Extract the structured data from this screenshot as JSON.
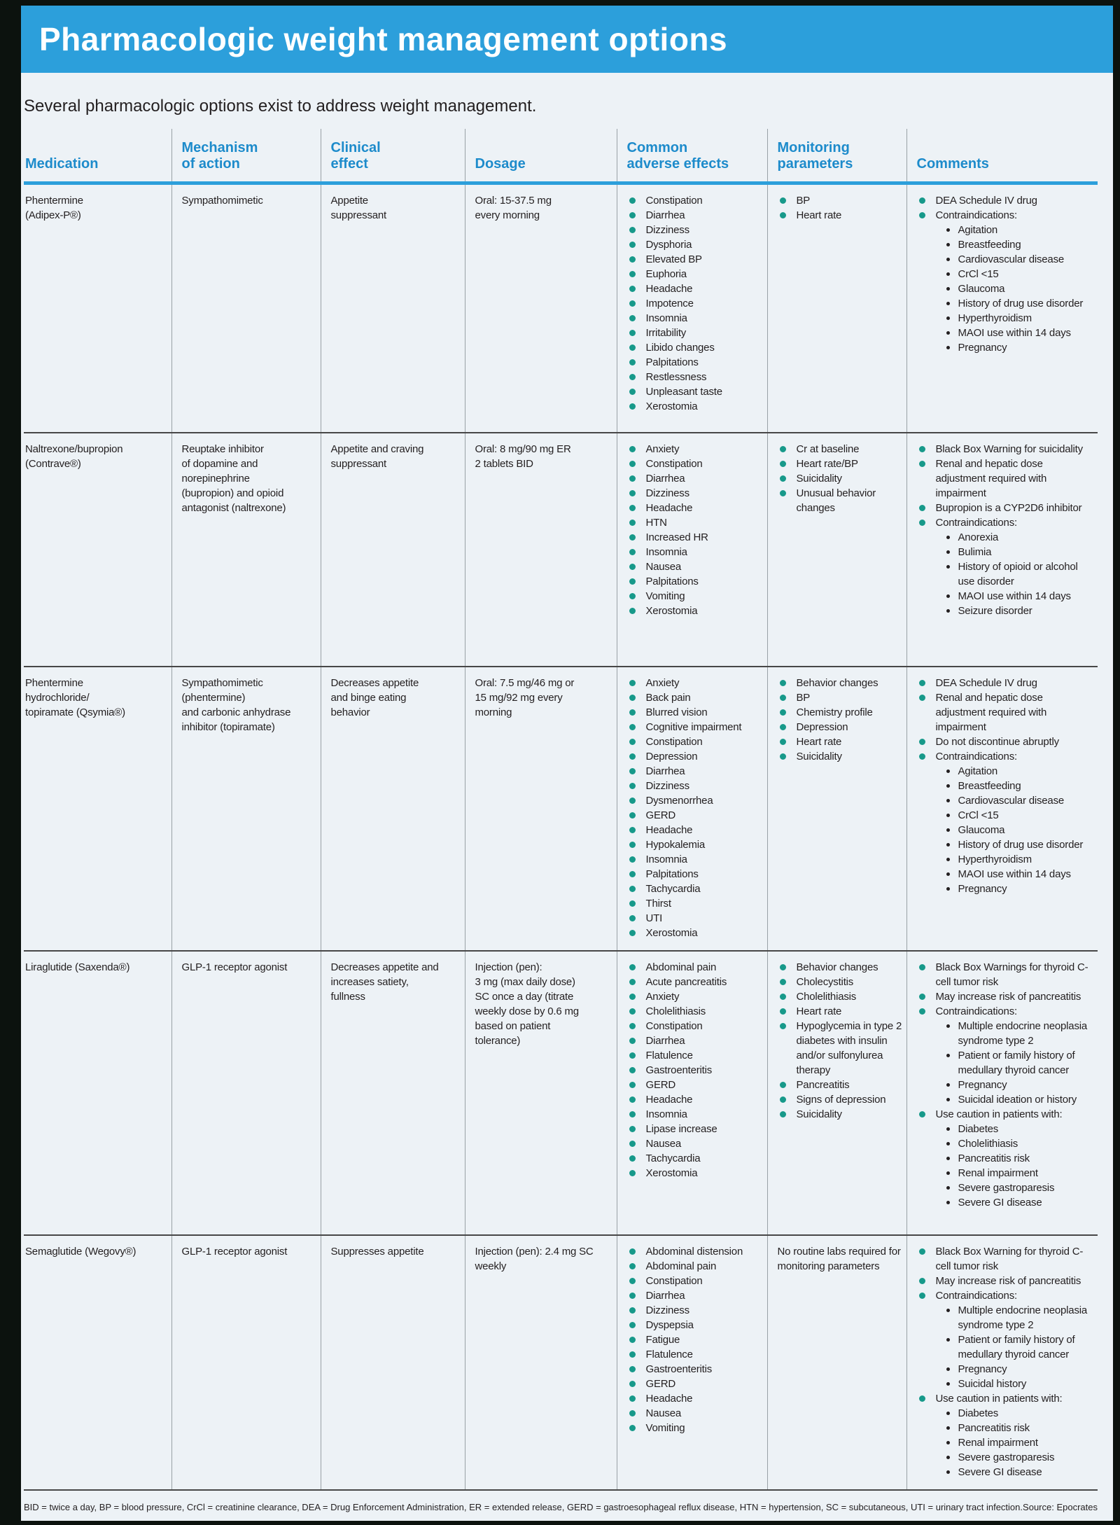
{
  "title": "Pharmacologic weight management options",
  "subtitle": "Several pharmacologic options exist to address weight management.",
  "colors": {
    "outer_bg": "#0c120e",
    "page_bg": "#edf2f6",
    "title_bar": "#2c9fdb",
    "header_text": "#1d8bcb",
    "bullet": "#17998a",
    "text": "#231f20",
    "row_divider": "#474747",
    "col_divider": "#99a1a6"
  },
  "table": {
    "columns": [
      "Medication",
      "Mechanism\nof action",
      "Clinical\neffect",
      "Dosage",
      "Common\nadverse effects",
      "Monitoring\nparameters",
      "Comments"
    ],
    "rows": [
      {
        "medication": "Phentermine\n(Adipex-P®)",
        "mechanism": "Sympathomimetic",
        "clinical_effect": "Appetite\nsuppressant",
        "dosage": "Oral: 15-37.5 mg\nevery morning",
        "adverse_effects": [
          "Constipation",
          "Diarrhea",
          "Dizziness",
          "Dysphoria",
          "Elevated BP",
          "Euphoria",
          "Headache",
          "Impotence",
          "Insomnia",
          "Irritability",
          "Libido changes",
          "Palpitations",
          "Restlessness",
          "Unpleasant taste",
          "Xerostomia"
        ],
        "monitoring": {
          "items": [
            "BP",
            "Heart rate"
          ]
        },
        "comments": [
          {
            "text": "DEA Schedule IV drug"
          },
          {
            "text": "Contraindications:",
            "sub": [
              "Agitation",
              "Breastfeeding",
              "Cardiovascular disease",
              "CrCl <15",
              "Glaucoma",
              "History of drug use disorder",
              "Hyperthyroidism",
              "MAOI use within 14 days",
              "Pregnancy"
            ]
          }
        ]
      },
      {
        "medication": "Naltrexone/bupropion\n (Contrave®)",
        "mechanism": "Reuptake inhibitor\nof dopamine and\nnorepinephrine\n(bupropion) and opioid\nantagonist (naltrexone)",
        "clinical_effect": "Appetite and craving\nsuppressant",
        "dosage": "Oral: 8 mg/90 mg ER\n2 tablets BID",
        "adverse_effects": [
          "Anxiety",
          "Constipation",
          "Diarrhea",
          "Dizziness",
          "Headache",
          "HTN",
          "Increased HR",
          "Insomnia",
          "Nausea",
          "Palpitations",
          "Vomiting",
          "Xerostomia"
        ],
        "monitoring": {
          "items": [
            "Cr at baseline",
            "Heart rate/BP",
            "Suicidality",
            "Unusual behavior changes"
          ]
        },
        "comments": [
          {
            "text": "Black Box Warning for suicidality"
          },
          {
            "text": "Renal and hepatic dose adjustment required with impairment"
          },
          {
            "text": "Bupropion is a CYP2D6 inhibitor"
          },
          {
            "text": "Contraindications:",
            "sub": [
              "Anorexia",
              "Bulimia",
              "History of opioid or alcohol use disorder",
              "MAOI use within 14 days",
              "Seizure disorder"
            ]
          }
        ]
      },
      {
        "medication": "Phentermine\nhydrochloride/\ntopiramate (Qsymia®)",
        "mechanism": "Sympathomimetic\n(phentermine)\nand carbonic anhydrase\ninhibitor (topiramate)",
        "clinical_effect": "Decreases appetite\nand binge eating\nbehavior",
        "dosage": "Oral: 7.5 mg/46 mg or\n15 mg/92 mg every\nmorning",
        "adverse_effects": [
          "Anxiety",
          "Back pain",
          "Blurred vision",
          "Cognitive impairment",
          "Constipation",
          "Depression",
          "Diarrhea",
          "Dizziness",
          "Dysmenorrhea",
          "GERD",
          "Headache",
          "Hypokalemia",
          "Insomnia",
          "Palpitations",
          "Tachycardia",
          "Thirst",
          "UTI",
          "Xerostomia"
        ],
        "monitoring": {
          "items": [
            "Behavior changes",
            "BP",
            "Chemistry profile",
            "Depression",
            "Heart rate",
            "Suicidality"
          ]
        },
        "comments": [
          {
            "text": "DEA Schedule IV drug"
          },
          {
            "text": "Renal and hepatic dose adjustment required with impairment"
          },
          {
            "text": "Do not discontinue abruptly"
          },
          {
            "text": "Contraindications:",
            "sub": [
              "Agitation",
              "Breastfeeding",
              "Cardiovascular disease",
              "CrCl <15",
              "Glaucoma",
              "History of drug use disorder",
              "Hyperthyroidism",
              "MAOI use within 14 days",
              "Pregnancy"
            ]
          }
        ]
      },
      {
        "medication": "Liraglutide (Saxenda®)",
        "mechanism": "GLP-1 receptor agonist",
        "clinical_effect": "Decreases appetite and\nincreases satiety,\nfullness",
        "dosage": "Injection (pen):\n3 mg (max daily dose)\nSC once a day (titrate\nweekly dose by 0.6 mg\nbased on patient\ntolerance)",
        "adverse_effects": [
          "Abdominal pain",
          "Acute pancreatitis",
          "Anxiety",
          "Cholelithiasis",
          "Constipation",
          "Diarrhea",
          "Flatulence",
          "Gastroenteritis",
          "GERD",
          "Headache",
          "Insomnia",
          "Lipase increase",
          "Nausea",
          "Tachycardia",
          "Xerostomia"
        ],
        "monitoring": {
          "items": [
            "Behavior changes",
            "Cholecystitis",
            "Cholelithiasis",
            "Heart rate",
            "Hypoglycemia in type 2 diabetes with insulin and/or sulfonylurea therapy",
            "Pancreatitis",
            "Signs of depression",
            "Suicidality"
          ]
        },
        "comments": [
          {
            "text": "Black Box Warnings for thyroid C-cell tumor risk"
          },
          {
            "text": "May increase risk of pancreatitis"
          },
          {
            "text": "Contraindications:",
            "sub": [
              "Multiple endocrine neoplasia syndrome type 2",
              "Patient or family history of medullary thyroid cancer",
              "Pregnancy",
              "Suicidal ideation or history"
            ]
          },
          {
            "text": "Use caution in patients with:",
            "sub": [
              "Diabetes",
              "Cholelithiasis",
              "Pancreatitis risk",
              "Renal impairment",
              "Severe gastroparesis",
              "Severe GI disease"
            ]
          }
        ]
      },
      {
        "medication": "Semaglutide (Wegovy®)",
        "mechanism": "GLP-1 receptor agonist",
        "clinical_effect": "Suppresses appetite",
        "dosage": "Injection (pen): 2.4 mg SC\nweekly",
        "adverse_effects": [
          "Abdominal distension",
          "Abdominal pain",
          "Constipation",
          "Diarrhea",
          "Dizziness",
          "Dyspepsia",
          "Fatigue",
          "Flatulence",
          "Gastroenteritis",
          "GERD",
          "Headache",
          "Nausea",
          "Vomiting"
        ],
        "monitoring": {
          "note": "No routine labs required for monitoring parameters"
        },
        "comments": [
          {
            "text": "Black Box Warning for thyroid C-cell tumor risk"
          },
          {
            "text": "May increase risk of pancreatitis"
          },
          {
            "text": "Contraindications:",
            "sub": [
              "Multiple endocrine neoplasia syndrome type 2",
              "Patient or family history of medullary thyroid cancer",
              "Pregnancy",
              "Suicidal history"
            ]
          },
          {
            "text": "Use caution in patients with:",
            "sub": [
              "Diabetes",
              "Pancreatitis risk",
              "Renal impairment",
              "Severe gastroparesis",
              "Severe GI disease"
            ]
          }
        ]
      }
    ]
  },
  "footnote": "BID = twice a day, BP = blood pressure, CrCl = creatinine clearance, DEA = Drug Enforcement Administration, ER = extended release, GERD = gastroesophageal reflux disease, HTN = hypertension, SC = subcutaneous, UTI = urinary tract infection.",
  "source": "Source: Epocrates"
}
